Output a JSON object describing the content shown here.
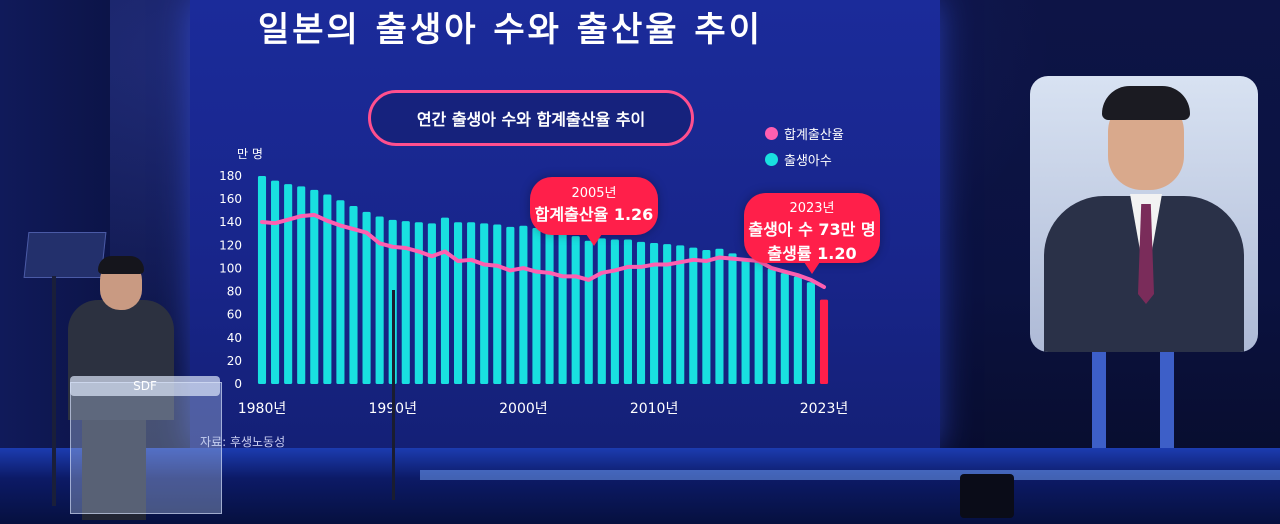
{
  "slide": {
    "title": "일본의 출생아 수와 출산율 추이",
    "subtitle": "연간 출생아 수와 합계출산율 추이",
    "unit_label": "만 명",
    "source": "자료: 후생노동성",
    "podium_label": "SDF"
  },
  "legend": [
    {
      "label": "합계출산율",
      "color": "#ff5fb0"
    },
    {
      "label": "출생아수",
      "color": "#19e0e0"
    }
  ],
  "callouts": {
    "c2005": {
      "line1": "2005년",
      "line2": "합계출산율 1.26"
    },
    "c2023": {
      "line1": "2023년",
      "line2": "출생아 수 73만 명",
      "line3": "출생률 1.20"
    }
  },
  "chart_data": {
    "type": "bar",
    "title": "연간 출생아 수와 합계출산율 추이",
    "ylabel": "만 명",
    "ylim": [
      0,
      180
    ],
    "y_ticks": [
      0,
      20,
      40,
      60,
      80,
      100,
      120,
      140,
      160,
      180
    ],
    "x_tick_labels": [
      {
        "year": 1980,
        "label": "1980년"
      },
      {
        "year": 1990,
        "label": "1990년"
      },
      {
        "year": 2000,
        "label": "2000년"
      },
      {
        "year": 2010,
        "label": "2010년"
      },
      {
        "year": 2023,
        "label": "2023년"
      }
    ],
    "years": [
      1980,
      1981,
      1982,
      1983,
      1984,
      1985,
      1986,
      1987,
      1988,
      1989,
      1990,
      1991,
      1992,
      1993,
      1994,
      1995,
      1996,
      1997,
      1998,
      1999,
      2000,
      2001,
      2002,
      2003,
      2004,
      2005,
      2006,
      2007,
      2008,
      2009,
      2010,
      2011,
      2012,
      2013,
      2014,
      2015,
      2016,
      2017,
      2018,
      2019,
      2020,
      2021,
      2022,
      2023
    ],
    "series": [
      {
        "name": "출생아수",
        "values": [
          180,
          176,
          173,
          171,
          168,
          164,
          159,
          154,
          149,
          145,
          142,
          141,
          140,
          139,
          144,
          140,
          140,
          139,
          138,
          136,
          137,
          135,
          132,
          130,
          128,
          124,
          126,
          125,
          125,
          123,
          122,
          121,
          120,
          118,
          116,
          117,
          113,
          108,
          106,
          100,
          96,
          93,
          88,
          73
        ],
        "color": "#19e0e0",
        "highlight_color": "#ff1f4a"
      },
      {
        "name": "합계출산율",
        "values": [
          1.75,
          1.74,
          1.77,
          1.8,
          1.81,
          1.76,
          1.72,
          1.69,
          1.66,
          1.57,
          1.54,
          1.53,
          1.5,
          1.46,
          1.5,
          1.42,
          1.43,
          1.39,
          1.38,
          1.34,
          1.36,
          1.33,
          1.32,
          1.29,
          1.29,
          1.26,
          1.32,
          1.34,
          1.37,
          1.37,
          1.39,
          1.39,
          1.41,
          1.43,
          1.42,
          1.45,
          1.44,
          1.43,
          1.42,
          1.36,
          1.33,
          1.3,
          1.26,
          1.2
        ],
        "color": "#ff5fb0"
      }
    ]
  }
}
